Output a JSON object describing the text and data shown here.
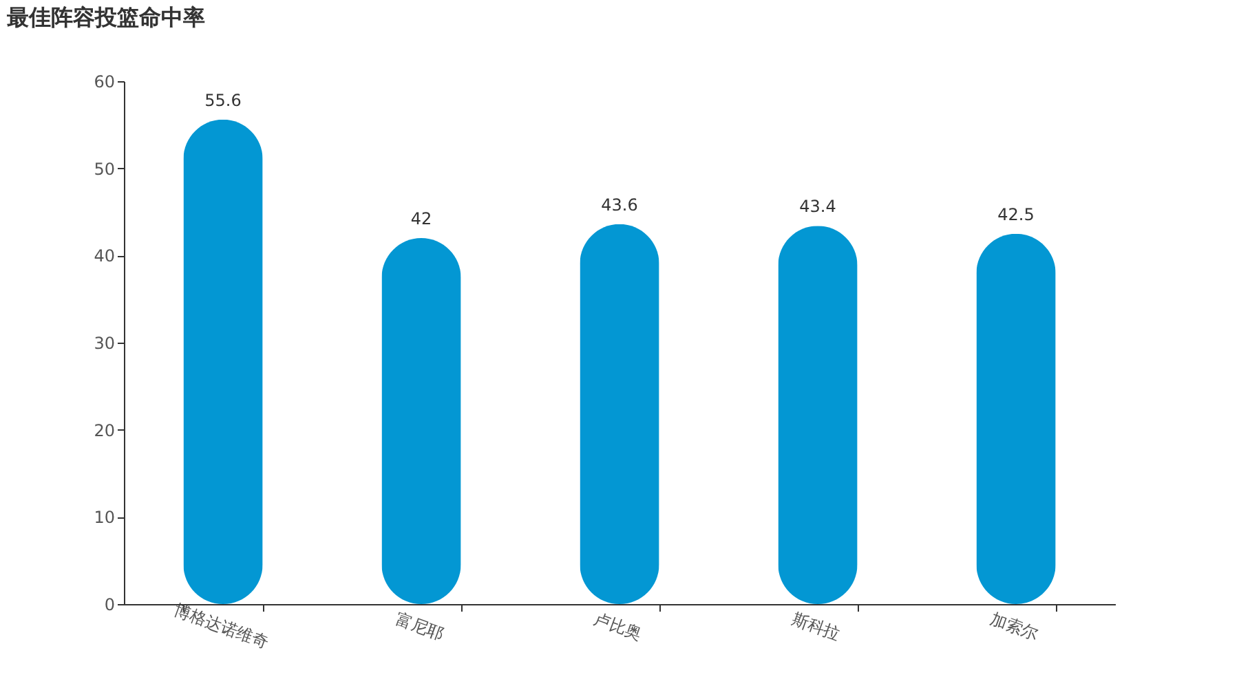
{
  "chart_data": {
    "type": "bar",
    "title": "最佳阵容投篮命中率",
    "categories": [
      "博格达诺维奇",
      "富尼耶",
      "卢比奥",
      "斯科拉",
      "加索尔"
    ],
    "values": [
      55.6,
      42,
      43.6,
      43.4,
      42.5
    ],
    "color": "#0397d3",
    "ylim": [
      0,
      60
    ],
    "yticks": [
      0,
      10,
      20,
      30,
      40,
      50,
      60
    ],
    "data_labels": true
  }
}
